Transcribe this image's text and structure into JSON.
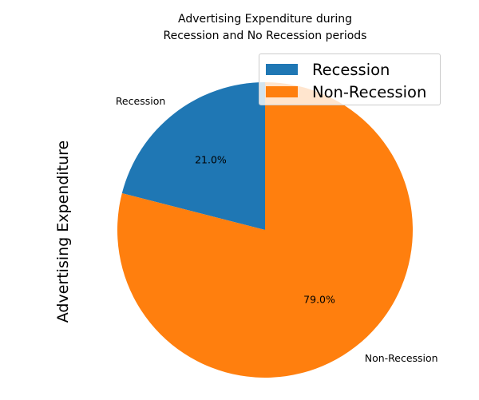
{
  "chart_data": {
    "type": "pie",
    "title": "Advertising Expenditure during\nRecession and No Recession periods",
    "ylabel": "Advertising Expenditure",
    "slices": [
      {
        "label": "Recession",
        "percent": 21.0,
        "percent_label": "21.0%",
        "color": "#1f77b4"
      },
      {
        "label": "Non-Recession",
        "percent": 79.0,
        "percent_label": "79.0%",
        "color": "#ff7f0e"
      }
    ],
    "start_angle_deg": 90,
    "direction": "counterclockwise",
    "legend": {
      "placement": "upper-right",
      "entries": [
        "Recession",
        "Non-Recession"
      ]
    }
  }
}
